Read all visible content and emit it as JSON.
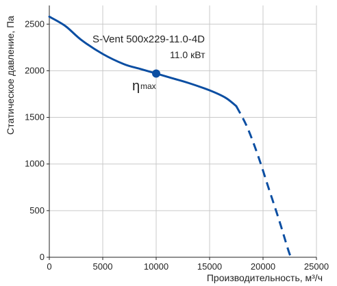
{
  "chart_data": {
    "type": "line",
    "xlabel": "Производительность, м³/ч",
    "ylabel": "Статическое давление, Па",
    "xlim": [
      0,
      25000
    ],
    "ylim": [
      0,
      2700
    ],
    "x_ticks": [
      0,
      5000,
      10000,
      15000,
      20000,
      25000
    ],
    "y_ticks": [
      0,
      500,
      1000,
      1500,
      2000,
      2500
    ],
    "x_tick_labels": [
      "0",
      "5000",
      "10000",
      "15000",
      "20000",
      "25000"
    ],
    "y_tick_labels": [
      "0",
      "500",
      "1000",
      "1500",
      "2000",
      "2500"
    ],
    "grid": true,
    "series": [
      {
        "name": "S-Vent 500x229-11.0-4D",
        "color": "#0b4ea2",
        "solid": {
          "x": [
            0,
            1500,
            3000,
            5000,
            7000,
            8500,
            10000,
            11500,
            13000,
            15000,
            16500,
            17500
          ],
          "y": [
            2580,
            2480,
            2330,
            2180,
            2070,
            2020,
            1970,
            1920,
            1870,
            1790,
            1710,
            1620
          ]
        },
        "dashed": {
          "x": [
            17500,
            18500,
            19500,
            20500,
            21500,
            22300,
            22600
          ],
          "y": [
            1620,
            1400,
            1100,
            750,
            400,
            100,
            0
          ]
        }
      }
    ],
    "annotations": {
      "model": "S-Vent 500x229-11.0-4D",
      "power": "11.0 кВт",
      "eta_symbol": "η",
      "eta_sub": "max",
      "eta_point": {
        "x": 10000,
        "y": 1970
      }
    }
  }
}
